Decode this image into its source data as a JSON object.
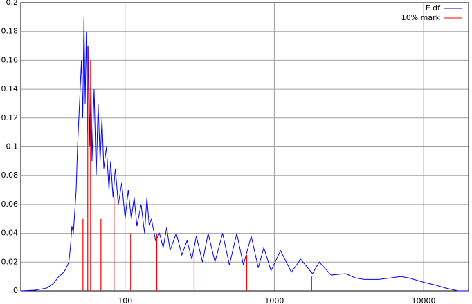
{
  "chart_data": {
    "type": "line",
    "legend": "top-right",
    "grid": true,
    "log_x": true,
    "xlim": [
      20,
      20000
    ],
    "xticks": [
      100,
      1000,
      10000
    ],
    "ylim": [
      0,
      0.2
    ],
    "yticks": [
      0,
      0.02,
      0.04,
      0.06,
      0.08,
      0.1,
      0.12,
      0.14,
      0.16,
      0.18,
      0.2
    ],
    "series": [
      {
        "name": "E df",
        "color": "#0000ff",
        "style": "lines",
        "x": [
          20,
          25,
          30,
          33,
          36,
          38,
          40,
          42,
          43,
          44,
          45,
          46,
          47,
          48,
          49,
          50,
          51,
          52,
          53,
          54,
          55,
          56,
          57,
          58,
          59,
          60,
          62,
          64,
          66,
          68,
          70,
          72,
          75,
          78,
          80,
          83,
          86,
          90,
          95,
          100,
          105,
          110,
          115,
          120,
          128,
          135,
          140,
          145,
          150,
          160,
          170,
          180,
          190,
          200,
          220,
          240,
          260,
          280,
          300,
          330,
          360,
          400,
          450,
          500,
          560,
          620,
          700,
          780,
          850,
          950,
          1100,
          1300,
          1500,
          1800,
          2000,
          2400,
          3000,
          3500,
          4000,
          5000,
          6000,
          7000,
          8000,
          10000,
          12000,
          14000,
          17000,
          20000
        ],
        "values": [
          0,
          0.0005,
          0.002,
          0.005,
          0.01,
          0.012,
          0.015,
          0.02,
          0.03,
          0.045,
          0.04,
          0.055,
          0.07,
          0.1,
          0.12,
          0.14,
          0.16,
          0.12,
          0.19,
          0.13,
          0.18,
          0.11,
          0.17,
          0.1,
          0.15,
          0.09,
          0.14,
          0.08,
          0.13,
          0.09,
          0.12,
          0.085,
          0.1,
          0.07,
          0.09,
          0.065,
          0.085,
          0.06,
          0.075,
          0.05,
          0.07,
          0.05,
          0.065,
          0.045,
          0.06,
          0.04,
          0.065,
          0.045,
          0.05,
          0.035,
          0.04,
          0.03,
          0.044,
          0.028,
          0.04,
          0.025,
          0.035,
          0.022,
          0.038,
          0.02,
          0.04,
          0.02,
          0.04,
          0.018,
          0.04,
          0.018,
          0.038,
          0.016,
          0.03,
          0.014,
          0.028,
          0.013,
          0.022,
          0.012,
          0.02,
          0.011,
          0.012,
          0.009,
          0.008,
          0.008,
          0.009,
          0.01,
          0.009,
          0.006,
          0.004,
          0.002,
          0,
          0
        ]
      },
      {
        "name": "10% mark",
        "color": "#ff0000",
        "style": "impulses",
        "x": [
          52.2,
          56.2,
          58.7,
          68.9,
          84.3,
          108.9,
          163,
          290,
          653,
          1778
        ],
        "values": [
          0.05,
          0.17,
          0.16,
          0.05,
          0.065,
          0.04,
          0.04,
          0.025,
          0.025,
          0.01
        ]
      }
    ]
  }
}
